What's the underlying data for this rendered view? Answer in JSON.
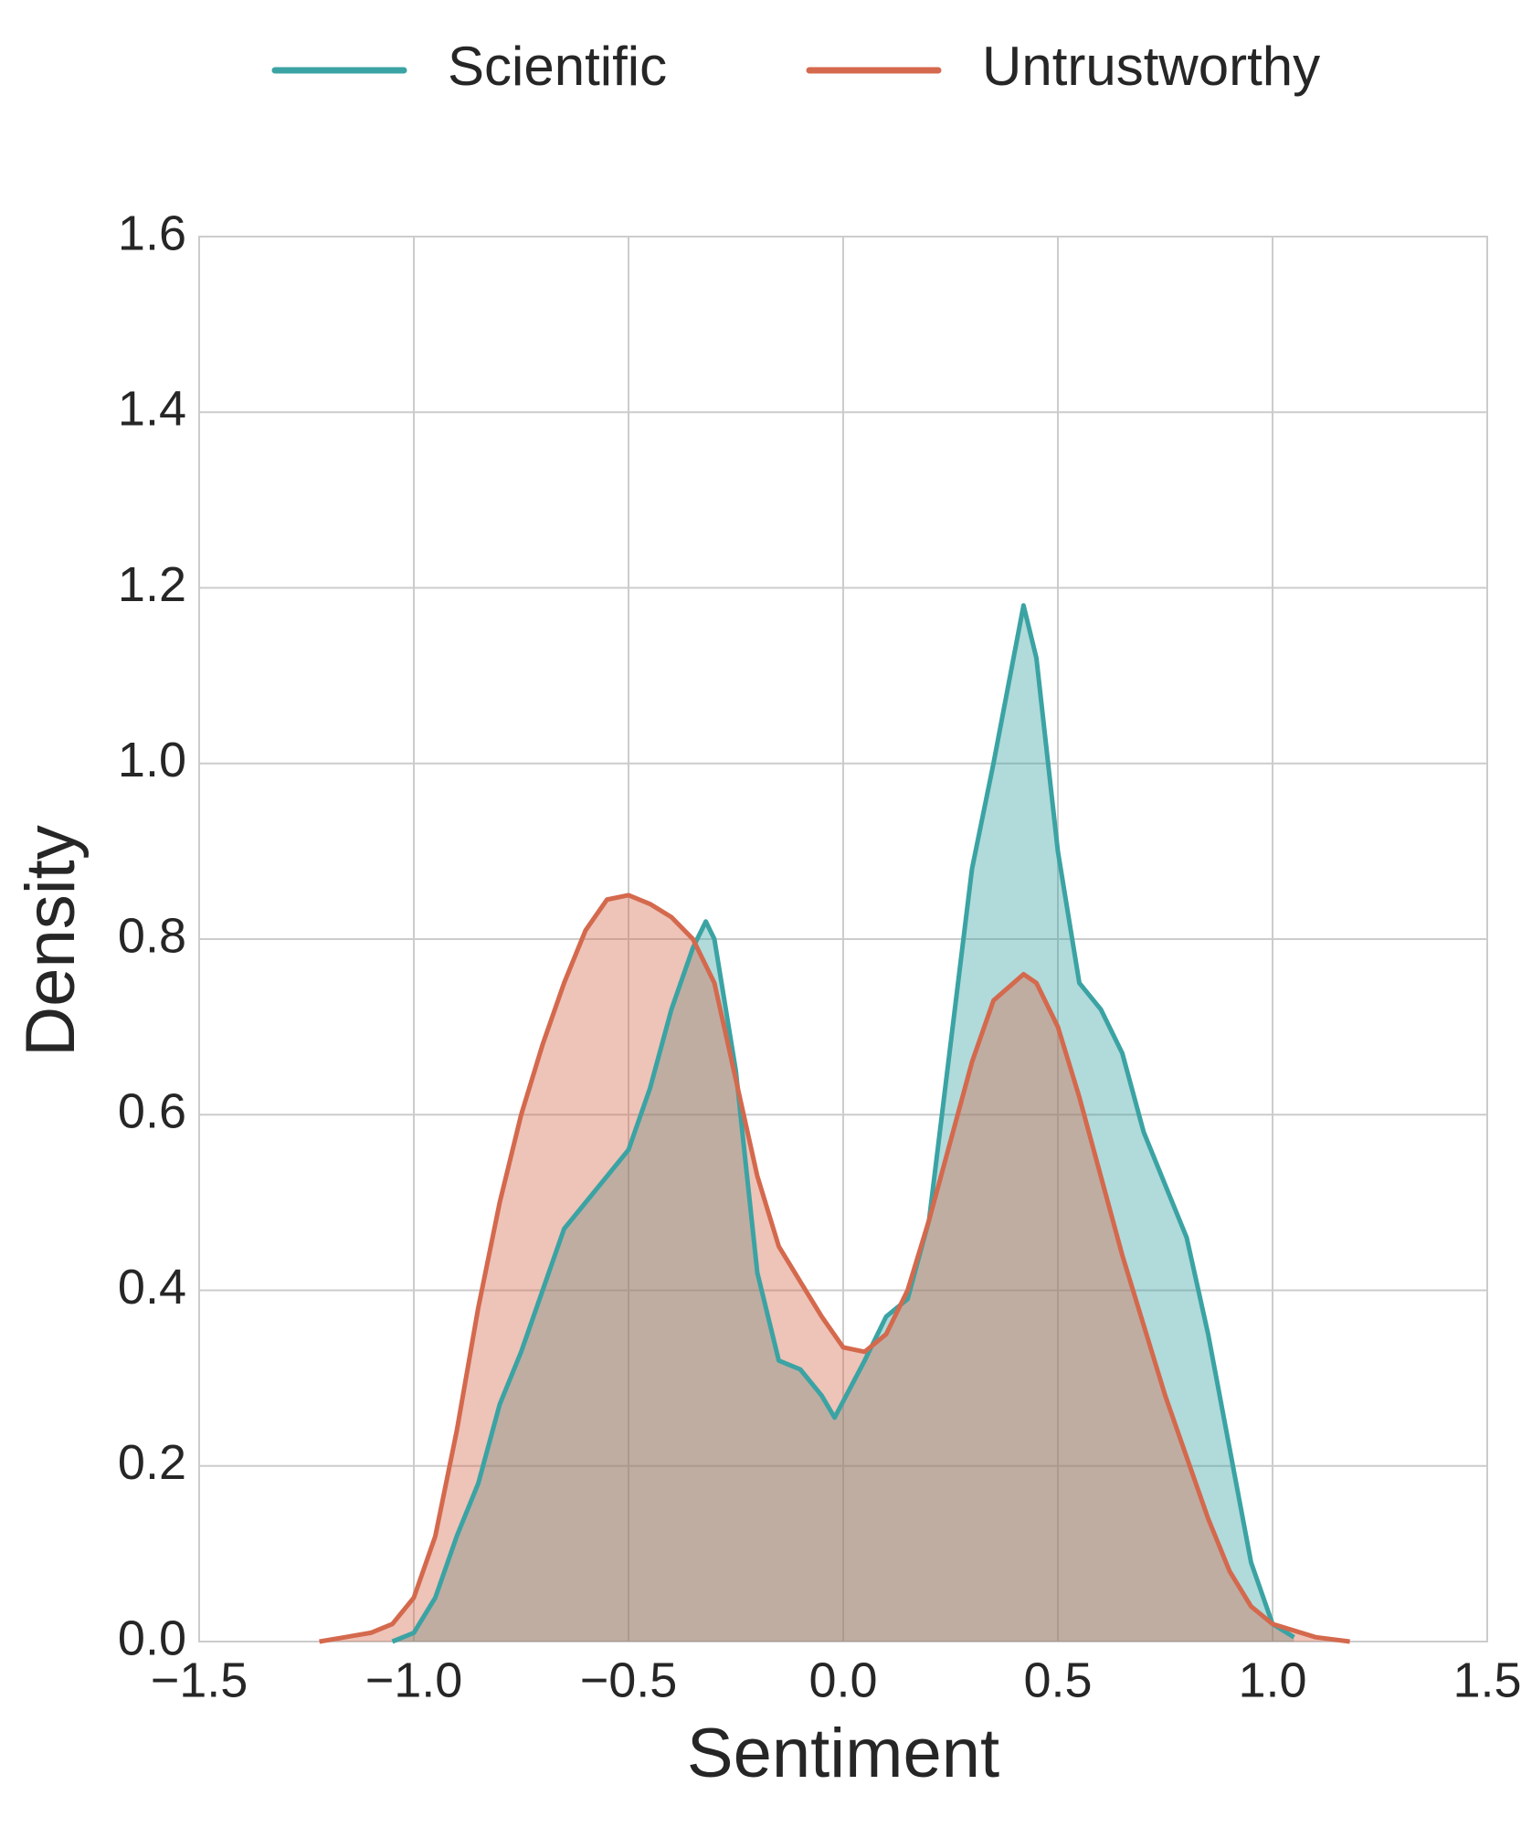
{
  "chart_data": {
    "type": "kde",
    "x_label": "Sentiment",
    "y_label": "Density",
    "xlim": [
      -1.5,
      1.5
    ],
    "ylim": [
      0,
      1.6
    ],
    "xticks": [
      {
        "value": -1.5,
        "label": "−1.5"
      },
      {
        "value": -1.0,
        "label": "−1.0"
      },
      {
        "value": -0.5,
        "label": "−0.5"
      },
      {
        "value": 0,
        "label": "0.0"
      },
      0.5,
      {
        "value": 1.0,
        "label": "1.0"
      },
      1.5
    ],
    "yticks": [
      {
        "value": 0,
        "label": "0.0"
      },
      0.2,
      0.4,
      0.6,
      0.8,
      {
        "value": 1.0,
        "label": "1.0"
      },
      1.2,
      1.4,
      1.6
    ],
    "grid": true,
    "legend": "top",
    "series": [
      {
        "name": "Scientific",
        "color": "#3ba3a3",
        "x": [
          -1.05,
          -1.0,
          -0.95,
          -0.9,
          -0.85,
          -0.8,
          -0.75,
          -0.7,
          -0.65,
          -0.6,
          -0.55,
          -0.5,
          -0.45,
          -0.4,
          -0.35,
          -0.32,
          -0.3,
          -0.25,
          -0.2,
          -0.15,
          -0.1,
          -0.05,
          -0.02,
          0.05,
          0.1,
          0.15,
          0.2,
          0.25,
          0.3,
          0.35,
          0.42,
          0.45,
          0.5,
          0.55,
          0.6,
          0.65,
          0.7,
          0.75,
          0.8,
          0.85,
          0.9,
          0.95,
          1.0,
          1.05
        ],
        "values": [
          0.0,
          0.01,
          0.05,
          0.12,
          0.18,
          0.27,
          0.33,
          0.4,
          0.47,
          0.5,
          0.53,
          0.56,
          0.63,
          0.72,
          0.79,
          0.82,
          0.8,
          0.65,
          0.42,
          0.32,
          0.31,
          0.28,
          0.255,
          0.32,
          0.37,
          0.39,
          0.48,
          0.68,
          0.88,
          1.0,
          1.18,
          1.12,
          0.9,
          0.75,
          0.72,
          0.67,
          0.58,
          0.52,
          0.46,
          0.35,
          0.22,
          0.09,
          0.02,
          0.005
        ]
      },
      {
        "name": "Untrustworthy",
        "color": "#d4694d",
        "x": [
          -1.22,
          -1.1,
          -1.05,
          -1.0,
          -0.95,
          -0.9,
          -0.85,
          -0.8,
          -0.75,
          -0.7,
          -0.65,
          -0.6,
          -0.55,
          -0.5,
          -0.45,
          -0.4,
          -0.35,
          -0.3,
          -0.25,
          -0.2,
          -0.15,
          -0.1,
          -0.05,
          0.0,
          0.05,
          0.1,
          0.15,
          0.2,
          0.25,
          0.3,
          0.35,
          0.42,
          0.45,
          0.5,
          0.55,
          0.6,
          0.65,
          0.7,
          0.75,
          0.8,
          0.85,
          0.9,
          0.95,
          1.0,
          1.1,
          1.18
        ],
        "values": [
          0.0,
          0.01,
          0.02,
          0.05,
          0.12,
          0.24,
          0.38,
          0.5,
          0.6,
          0.68,
          0.75,
          0.81,
          0.845,
          0.85,
          0.84,
          0.825,
          0.8,
          0.75,
          0.64,
          0.53,
          0.45,
          0.41,
          0.37,
          0.335,
          0.33,
          0.35,
          0.4,
          0.48,
          0.57,
          0.66,
          0.73,
          0.76,
          0.75,
          0.7,
          0.62,
          0.53,
          0.44,
          0.36,
          0.28,
          0.21,
          0.14,
          0.08,
          0.04,
          0.02,
          0.005,
          0.0
        ]
      }
    ]
  }
}
